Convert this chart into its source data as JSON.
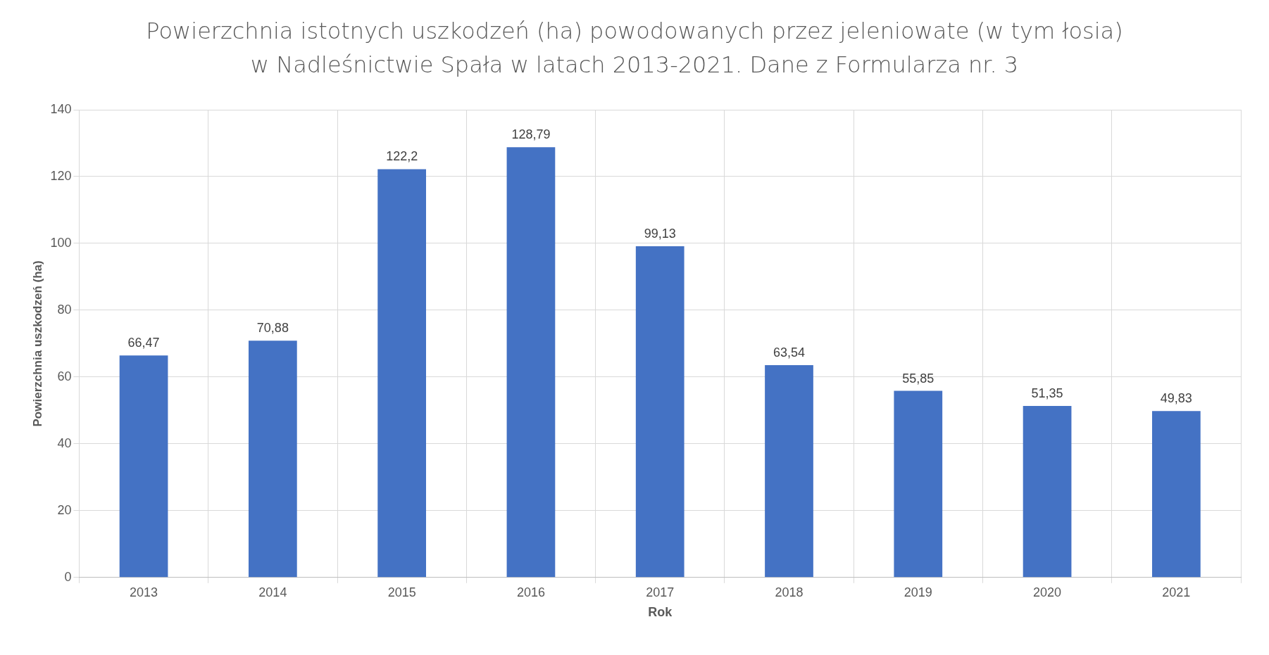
{
  "chart_data": {
    "type": "bar",
    "title": "Powierzchnia istotnych uszkodzeń (ha) powodowanych przez  jeleniowate (w tym łosia) w Nadleśnictwie Spała w latach 2013-2021. Dane z Formularza nr. 3",
    "xlabel": "Rok",
    "ylabel": "Powierzchnia uszkodzeń (ha)",
    "categories": [
      "2013",
      "2014",
      "2015",
      "2016",
      "2017",
      "2018",
      "2019",
      "2020",
      "2021"
    ],
    "values": [
      66.47,
      70.88,
      122.2,
      128.79,
      99.13,
      63.54,
      55.85,
      51.35,
      49.83
    ],
    "value_labels": [
      "66,47",
      "70,88",
      "122,2",
      "128,79",
      "99,13",
      "63,54",
      "55,85",
      "51,35",
      "49,83"
    ],
    "color": "#4472c4",
    "ylim": [
      0,
      140
    ],
    "yticks": [
      0,
      20,
      40,
      60,
      80,
      100,
      120,
      140
    ],
    "grid": true
  }
}
